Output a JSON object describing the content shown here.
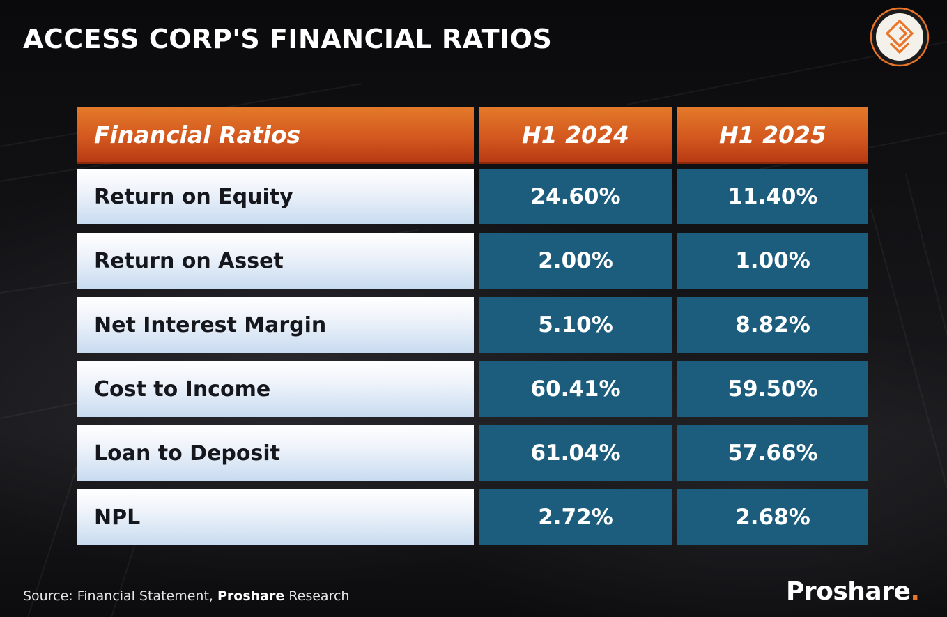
{
  "title": "ACCESS CORP'S FINANCIAL RATIOS",
  "logo": {
    "icon": "proshare-diamond-logo-icon",
    "ring_color": "#e8742a"
  },
  "colors": {
    "header": "#d4581f",
    "value_cell": "#1c5c7c",
    "label_cell": "#dde8f5",
    "accent": "#e8742a"
  },
  "chart_data": {
    "type": "table",
    "columns": [
      "Financial Ratios",
      "H1 2024",
      "H1 2025"
    ],
    "rows": [
      {
        "label": "Return on Equity",
        "values": [
          "24.60%",
          "11.40%"
        ]
      },
      {
        "label": "Return on Asset",
        "values": [
          "2.00%",
          "1.00%"
        ]
      },
      {
        "label": "Net Interest Margin",
        "values": [
          "5.10%",
          "8.82%"
        ]
      },
      {
        "label": "Cost to Income",
        "values": [
          "60.41%",
          "59.50%"
        ]
      },
      {
        "label": "Loan to Deposit",
        "values": [
          "61.04%",
          "57.66%"
        ]
      },
      {
        "label": "NPL",
        "values": [
          "2.72%",
          "2.68%"
        ]
      }
    ]
  },
  "source": {
    "prefix": "Source: Financial Statement, ",
    "bold": "Proshare",
    "suffix": " Research"
  },
  "brand": {
    "name": "Proshare",
    "dot": "."
  }
}
